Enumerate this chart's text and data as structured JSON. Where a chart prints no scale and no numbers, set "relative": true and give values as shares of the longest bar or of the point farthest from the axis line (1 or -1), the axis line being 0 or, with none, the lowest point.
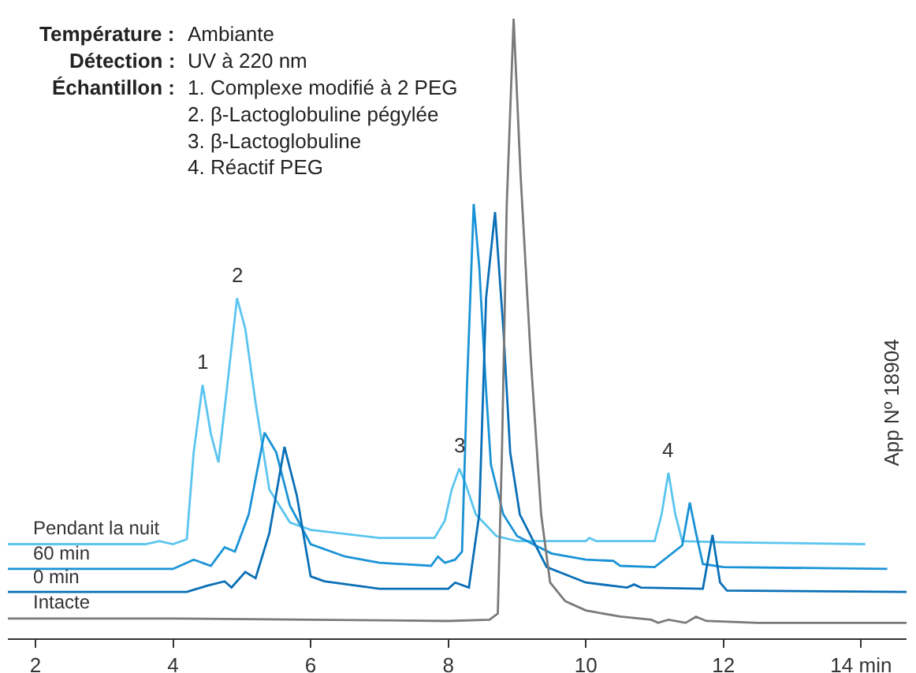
{
  "chart_data": {
    "type": "line",
    "relative": true,
    "legend": false,
    "grid": false,
    "marker": "none",
    "line_style": "solid",
    "xlim": [
      1.6,
      14.66
    ],
    "xticks": [
      2,
      4,
      6,
      8,
      10,
      12,
      {
        "value": 14,
        "label": "14 min"
      }
    ],
    "annotations": [
      "Température : Ambiante",
      "Détection : UV à 220 nm",
      "Échantillon : 1. Complexe modifié à 2 PEG\n2. β-Lactoglobuline pégylée\n3. β-Lactoglobuline\n4. Réactif PEG",
      {
        "text": "1",
        "x": 4.43,
        "y": 0.409
      },
      {
        "text": "2",
        "x": 4.93,
        "y": 0.549
      },
      {
        "text": "3",
        "x": 8.16,
        "y": 0.274
      },
      {
        "text": "4",
        "x": 11.2,
        "y": 0.267
      },
      "App Nº 18904"
    ],
    "series": [
      {
        "name": "Pendant la nuit",
        "color": "#5bc5ef",
        "x": [
          1.6,
          3.6,
          3.8,
          4.0,
          4.2,
          4.3,
          4.43,
          4.55,
          4.66,
          4.78,
          4.93,
          5.05,
          5.2,
          5.4,
          5.7,
          6.0,
          7.0,
          7.8,
          7.95,
          8.05,
          8.16,
          8.25,
          8.4,
          8.7,
          9.0,
          10.0,
          10.05,
          10.15,
          11.0,
          11.1,
          11.2,
          11.3,
          11.4,
          12.0,
          14.06
        ],
        "values": [
          0.152,
          0.152,
          0.157,
          0.152,
          0.16,
          0.3,
          0.409,
          0.33,
          0.284,
          0.4,
          0.549,
          0.5,
          0.38,
          0.24,
          0.187,
          0.175,
          0.162,
          0.162,
          0.19,
          0.24,
          0.274,
          0.25,
          0.2,
          0.165,
          0.157,
          0.157,
          0.162,
          0.157,
          0.157,
          0.2,
          0.267,
          0.2,
          0.157,
          0.155,
          0.152
        ]
      },
      {
        "name": "60 min",
        "color": "#1a93d6",
        "x": [
          1.6,
          4.0,
          4.3,
          4.55,
          4.75,
          4.9,
          5.1,
          5.33,
          5.5,
          5.7,
          6.0,
          6.5,
          7.0,
          7.75,
          7.85,
          7.95,
          8.1,
          8.2,
          8.27,
          8.37,
          8.45,
          8.55,
          8.62,
          8.8,
          9.0,
          9.5,
          10.0,
          10.4,
          10.5,
          11.0,
          11.4,
          11.51,
          11.6,
          11.7,
          12.0,
          14.38
        ],
        "values": [
          0.112,
          0.112,
          0.127,
          0.117,
          0.147,
          0.14,
          0.2,
          0.332,
          0.3,
          0.214,
          0.152,
          0.132,
          0.122,
          0.117,
          0.132,
          0.122,
          0.127,
          0.14,
          0.4,
          0.701,
          0.6,
          0.4,
          0.28,
          0.2,
          0.165,
          0.137,
          0.127,
          0.125,
          0.117,
          0.115,
          0.15,
          0.219,
          0.17,
          0.12,
          0.115,
          0.112
        ]
      },
      {
        "name": "0 min",
        "color": "#0a6fb6",
        "x": [
          1.6,
          4.2,
          4.5,
          4.75,
          4.85,
          5.05,
          5.2,
          5.4,
          5.62,
          5.8,
          6.0,
          6.2,
          7.0,
          8.0,
          8.1,
          8.3,
          8.45,
          8.55,
          8.68,
          8.8,
          8.9,
          9.04,
          9.43,
          10.0,
          10.6,
          10.7,
          10.8,
          11.7,
          11.84,
          11.95,
          12.05,
          14.66
        ],
        "values": [
          0.075,
          0.075,
          0.085,
          0.092,
          0.082,
          0.107,
          0.097,
          0.17,
          0.309,
          0.23,
          0.1,
          0.092,
          0.08,
          0.08,
          0.09,
          0.082,
          0.2,
          0.55,
          0.688,
          0.5,
          0.3,
          0.2,
          0.115,
          0.09,
          0.082,
          0.087,
          0.082,
          0.08,
          0.167,
          0.09,
          0.077,
          0.075
        ]
      },
      {
        "name": "Intacte",
        "color": "#7a7a7a",
        "x": [
          1.6,
          4.0,
          6.0,
          8.0,
          8.6,
          8.72,
          8.78,
          8.85,
          8.95,
          9.05,
          9.2,
          9.35,
          9.48,
          9.7,
          10.0,
          10.5,
          10.95,
          11.05,
          11.2,
          11.45,
          11.6,
          11.75,
          12.5,
          14.66
        ],
        "values": [
          0.032,
          0.032,
          0.03,
          0.028,
          0.03,
          0.04,
          0.3,
          0.7,
          1.0,
          0.75,
          0.45,
          0.2,
          0.09,
          0.06,
          0.045,
          0.035,
          0.03,
          0.025,
          0.03,
          0.025,
          0.035,
          0.028,
          0.025,
          0.025
        ]
      }
    ]
  }
}
